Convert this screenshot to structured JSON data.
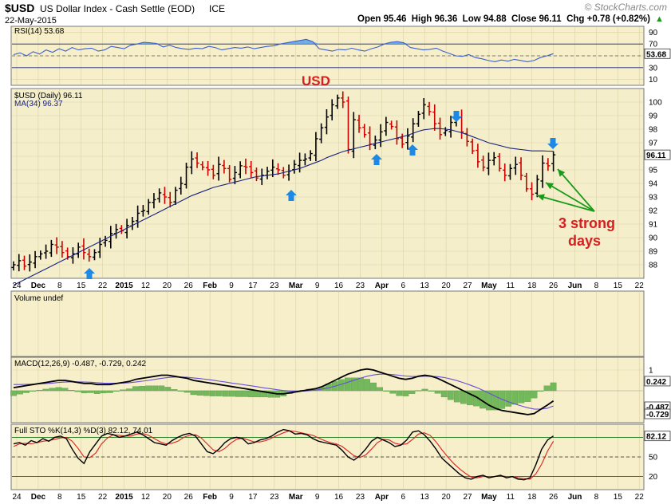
{
  "header": {
    "symbol": "$USD",
    "name": "US Dollar Index - Cash Settle (EOD)",
    "exchange": "ICE",
    "date": "22-May-2015",
    "ohlc": "Open 95.46  High 96.36  Low 94.88  Close 96.11  Chg +0.78 (+0.82%)",
    "change_arrow": "▲",
    "watermark": "© StockCharts.com"
  },
  "colors": {
    "panel_bg": "#f6efc9",
    "price_bg": "#f4eecb",
    "up_bar": "#000000",
    "down_bar": "#cc0000",
    "ma_line": "#1a237e",
    "rsi_line": "#3d5fcf",
    "rsi_fill": "#5aa0e6",
    "macd_hist": "#74b85c",
    "annotation_arrow_blue": "#1e88e5",
    "annotation_arrow_green": "#1a9a1a",
    "annotation_text": "#d62020"
  },
  "annotations": {
    "title": "USD",
    "strong_days_line1": "3 strong",
    "strong_days_line2": "days"
  },
  "date_axis": [
    "24",
    "Dec",
    "8",
    "15",
    "22",
    "2015",
    "12",
    "20",
    "26",
    "Feb",
    "9",
    "17",
    "23",
    "Mar",
    "9",
    "16",
    "23",
    "Apr",
    "6",
    "13",
    "20",
    "27",
    "May",
    "11",
    "18",
    "26",
    "Jun",
    "8",
    "15",
    "22"
  ],
  "date_axis_bold": [
    "Dec",
    "2015",
    "Feb",
    "Mar",
    "Apr",
    "May",
    "Jun"
  ],
  "chart_data": [
    {
      "type": "line",
      "title": "RSI(14) 53.68",
      "ylim": [
        0,
        100
      ],
      "y_ticks": [
        "90",
        "70",
        "50",
        "30",
        "10"
      ],
      "reference_lines": [
        70,
        30
      ],
      "last_value_label": "53.68",
      "series": [
        {
          "name": "RSI(14)",
          "values": [
            52,
            55,
            50,
            57,
            53,
            60,
            56,
            62,
            58,
            64,
            60,
            62,
            63,
            58,
            60,
            66,
            64,
            62,
            68,
            70,
            73,
            72,
            71,
            65,
            68,
            64,
            62,
            61,
            63,
            62,
            66,
            64,
            60,
            62,
            64,
            63,
            65,
            62,
            64,
            66,
            67,
            70,
            72,
            74,
            76,
            78,
            74,
            62,
            60,
            58,
            61,
            60,
            63,
            60,
            58,
            62,
            65,
            70,
            73,
            74,
            72,
            64,
            62,
            60,
            61,
            63,
            58,
            54,
            50,
            49,
            52,
            47,
            45,
            42,
            40,
            43,
            41,
            44,
            42,
            40,
            42,
            47,
            50,
            53.68
          ]
        }
      ]
    },
    {
      "type": "ohlc",
      "title": "$USD (Daily) 96.11",
      "ylabel": "",
      "ylim": [
        87,
        101
      ],
      "y_ticks": [
        "100",
        "99",
        "98",
        "97",
        "96",
        "95",
        "94",
        "93",
        "92",
        "91",
        "90",
        "89",
        "88"
      ],
      "last_value_label": "96.11",
      "close": [
        88.0,
        88.3,
        87.9,
        88.2,
        88.6,
        88.8,
        89.0,
        89.5,
        89.3,
        88.9,
        88.6,
        88.8,
        89.3,
        88.9,
        88.6,
        88.9,
        89.5,
        89.8,
        90.3,
        90.6,
        90.5,
        90.9,
        91.2,
        91.8,
        92.0,
        92.6,
        92.8,
        93.3,
        93.0,
        92.6,
        93.5,
        94.0,
        95.2,
        95.8,
        95.5,
        95.2,
        95.0,
        94.6,
        95.4,
        95.1,
        94.3,
        94.8,
        95.3,
        95.2,
        94.8,
        94.4,
        94.6,
        94.9,
        95.2,
        95.0,
        94.6,
        94.9,
        95.4,
        95.7,
        95.8,
        96.2,
        97.3,
        98.1,
        98.9,
        99.8,
        100.3,
        100.0,
        96.5,
        98.7,
        98.1,
        97.6,
        96.9,
        97.2,
        97.8,
        98.5,
        98.2,
        97.3,
        96.9,
        97.5,
        98.4,
        99.1,
        99.8,
        99.3,
        98.4,
        97.6,
        97.9,
        98.5,
        98.8,
        97.8,
        97.1,
        96.4,
        95.6,
        95.2,
        95.7,
        95.9,
        95.1,
        94.6,
        95.1,
        95.4,
        94.6,
        93.6,
        93.2,
        94.3,
        95.5,
        95.3,
        96.11
      ],
      "ma34": [
        86.5,
        86.7,
        86.9,
        87.1,
        87.3,
        87.5,
        87.7,
        87.9,
        88.1,
        88.3,
        88.5,
        88.7,
        88.9,
        89.1,
        89.3,
        89.5,
        89.7,
        89.9,
        90.1,
        90.3,
        90.5,
        90.7,
        90.9,
        91.1,
        91.3,
        91.5,
        91.7,
        91.9,
        92.1,
        92.3,
        92.5,
        92.7,
        92.9,
        93.1,
        93.25,
        93.4,
        93.55,
        93.7,
        93.8,
        93.9,
        94.0,
        94.1,
        94.2,
        94.3,
        94.4,
        94.5,
        94.55,
        94.6,
        94.65,
        94.7,
        94.8,
        94.9,
        95.0,
        95.1,
        95.25,
        95.4,
        95.55,
        95.7,
        95.9,
        96.05,
        96.2,
        96.35,
        96.45,
        96.55,
        96.65,
        96.75,
        96.85,
        96.95,
        97.05,
        97.15,
        97.25,
        97.35,
        97.45,
        97.55,
        97.7,
        97.85,
        97.95,
        98.0,
        98.05,
        98.05,
        98.0,
        97.95,
        97.85,
        97.75,
        97.6,
        97.45,
        97.3,
        97.15,
        97.0,
        96.9,
        96.8,
        96.7,
        96.6,
        96.55,
        96.5,
        96.45,
        96.4,
        96.4,
        96.4,
        96.38,
        96.37
      ]
    },
    {
      "type": "bar",
      "title": "Volume undef",
      "values": []
    },
    {
      "type": "line",
      "title": "MACD(12,26,9) -0.487, -0.729, 0.242",
      "y_ticks": [
        "1"
      ],
      "last_value_labels": [
        "0.242",
        "-0.487",
        "-0.729"
      ],
      "series": [
        {
          "name": "MACD",
          "values": [
            0.15,
            0.2,
            0.25,
            0.3,
            0.35,
            0.4,
            0.45,
            0.5,
            0.5,
            0.45,
            0.4,
            0.35,
            0.35,
            0.3,
            0.3,
            0.3,
            0.35,
            0.4,
            0.45,
            0.55,
            0.6,
            0.65,
            0.7,
            0.75,
            0.75,
            0.7,
            0.65,
            0.6,
            0.5,
            0.45,
            0.4,
            0.35,
            0.3,
            0.25,
            0.2,
            0.15,
            0.1,
            0.05,
            0.0,
            -0.05,
            -0.1,
            -0.15,
            -0.15,
            -0.1,
            -0.05,
            0.0,
            0.05,
            0.1,
            0.2,
            0.35,
            0.5,
            0.65,
            0.8,
            0.9,
            1.0,
            1.05,
            1.0,
            0.9,
            0.8,
            0.7,
            0.6,
            0.55,
            0.6,
            0.7,
            0.75,
            0.7,
            0.6,
            0.45,
            0.3,
            0.15,
            0.0,
            -0.15,
            -0.3,
            -0.5,
            -0.7,
            -0.85,
            -0.95,
            -1.0,
            -1.05,
            -1.1,
            -1.15,
            -1.1,
            -0.9,
            -0.7,
            -0.487
          ]
        },
        {
          "name": "Signal",
          "values": [
            0.3,
            0.3,
            0.31,
            0.32,
            0.33,
            0.35,
            0.37,
            0.4,
            0.42,
            0.43,
            0.43,
            0.42,
            0.41,
            0.39,
            0.37,
            0.36,
            0.36,
            0.37,
            0.39,
            0.42,
            0.46,
            0.5,
            0.55,
            0.6,
            0.64,
            0.66,
            0.66,
            0.65,
            0.62,
            0.59,
            0.55,
            0.51,
            0.46,
            0.42,
            0.37,
            0.33,
            0.28,
            0.24,
            0.19,
            0.14,
            0.1,
            0.05,
            0.01,
            -0.01,
            -0.02,
            -0.02,
            0.0,
            0.03,
            0.08,
            0.14,
            0.22,
            0.31,
            0.41,
            0.51,
            0.61,
            0.7,
            0.76,
            0.8,
            0.8,
            0.78,
            0.75,
            0.71,
            0.69,
            0.69,
            0.7,
            0.7,
            0.68,
            0.64,
            0.57,
            0.49,
            0.39,
            0.28,
            0.16,
            0.03,
            -0.12,
            -0.27,
            -0.41,
            -0.53,
            -0.64,
            -0.73,
            -0.82,
            -0.88,
            -0.89,
            -0.85,
            -0.729
          ]
        }
      ]
    },
    {
      "type": "line",
      "title": "Full STO %K(14,3) %D(3) 82.12, 74.01",
      "ylim": [
        0,
        100
      ],
      "y_ticks": [
        "80",
        "50",
        "20"
      ],
      "reference_lines": [
        80,
        50,
        20
      ],
      "last_value_label": "82.12",
      "series": [
        {
          "name": "%K",
          "values": [
            70,
            72,
            68,
            75,
            72,
            78,
            74,
            80,
            82,
            78,
            62,
            48,
            40,
            58,
            70,
            82,
            86,
            84,
            80,
            82,
            85,
            88,
            84,
            78,
            72,
            70,
            68,
            75,
            80,
            84,
            86,
            82,
            70,
            58,
            55,
            62,
            72,
            78,
            80,
            78,
            70,
            72,
            76,
            78,
            82,
            88,
            92,
            90,
            85,
            86,
            84,
            78,
            74,
            72,
            70,
            68,
            60,
            50,
            45,
            52,
            62,
            74,
            80,
            76,
            72,
            66,
            68,
            76,
            88,
            90,
            84,
            74,
            62,
            48,
            40,
            32,
            24,
            18,
            16,
            20,
            22,
            18,
            20,
            22,
            18,
            20,
            16,
            15,
            18,
            38,
            62,
            76,
            82.12
          ]
        },
        {
          "name": "%D",
          "values": [
            66,
            70,
            71,
            70,
            72,
            74,
            75,
            77,
            79,
            80,
            74,
            63,
            50,
            49,
            56,
            70,
            79,
            84,
            83,
            82,
            82,
            85,
            86,
            83,
            78,
            73,
            70,
            71,
            74,
            80,
            83,
            84,
            79,
            70,
            61,
            58,
            63,
            71,
            77,
            79,
            76,
            73,
            73,
            75,
            79,
            83,
            87,
            90,
            89,
            87,
            85,
            83,
            79,
            75,
            72,
            70,
            66,
            59,
            52,
            49,
            53,
            62,
            72,
            77,
            76,
            71,
            69,
            70,
            77,
            85,
            87,
            83,
            73,
            61,
            50,
            40,
            32,
            25,
            19,
            18,
            20,
            20,
            20,
            21,
            20,
            20,
            18,
            17,
            16,
            24,
            39,
            59,
            74.01
          ]
        }
      ]
    }
  ]
}
